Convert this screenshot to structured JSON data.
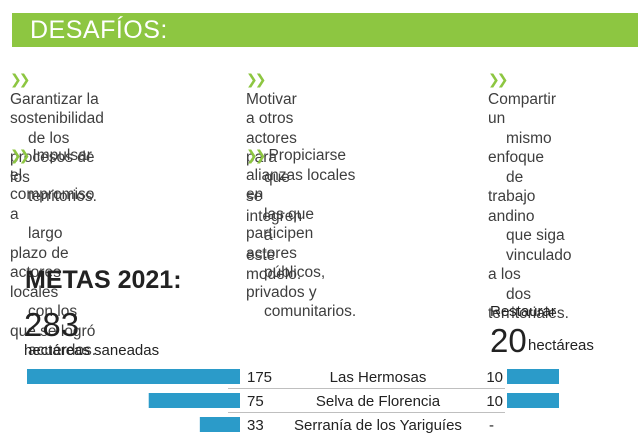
{
  "banner": {
    "title": "DESAFÍOS:",
    "color": "#8dc641"
  },
  "challenges": [
    {
      "lines": [
        "Garantizar la sostenibilidad",
        "de los procesos de los",
        "territorios."
      ]
    },
    {
      "lines": [
        "Impulsar el compromiso a",
        "largo plazo de actores locales",
        "con los que se logró",
        "acuerdos."
      ]
    },
    {
      "lines": [
        "Motivar a otros actores para",
        "que se integren",
        "a este modelo."
      ]
    },
    {
      "lines": [
        "Propiciarse alianzas locales en",
        "las que participen actores",
        "públicos, privados y",
        "comunitarios."
      ]
    },
    {
      "lines": [
        "Compartir un",
        "mismo enfoque",
        "de trabajo andino",
        "que siga",
        "vinculado a los",
        "dos territoriales."
      ]
    }
  ],
  "metas": {
    "title": "METAS 2021:",
    "left_total": "283",
    "left_unit": "hectáreas saneadas",
    "right_pre": "Restaurar",
    "right_total": "20",
    "right_unit": "hectáreas"
  },
  "chart_data": {
    "type": "bar",
    "categories": [
      "Las Hermosas",
      "Selva de Florencia",
      "Serranía de los Yariguíes"
    ],
    "series": [
      {
        "values": [
          175,
          75,
          33
        ],
        "labels": [
          "175",
          "75",
          "33"
        ]
      },
      {
        "values": [
          10,
          10,
          0
        ],
        "labels": [
          "10",
          "10",
          "-"
        ]
      }
    ],
    "bar_color": "#2b9bc9"
  }
}
